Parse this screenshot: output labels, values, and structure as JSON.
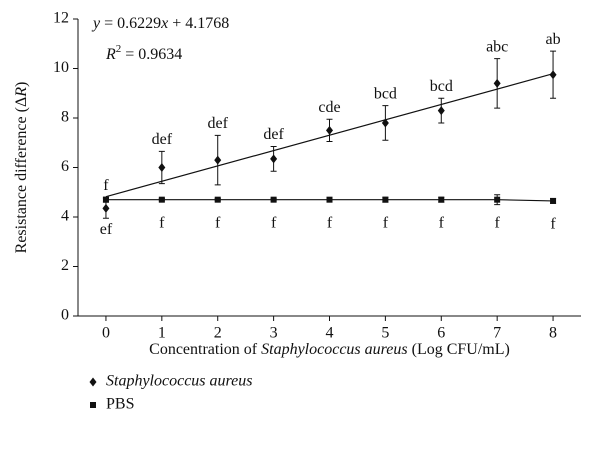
{
  "chart_data": {
    "type": "scatter",
    "xlabel": [
      "Concentration of ",
      "Staphylococcus aureus",
      " (Log CFU/mL)"
    ],
    "ylabel": [
      "Resistance difference (Δ",
      "R",
      ")"
    ],
    "equation": [
      "y",
      " = 0.6229",
      "x",
      " + 4.1768"
    ],
    "r_squared": [
      "R",
      "2",
      " = 0.9634"
    ],
    "x": [
      0,
      1,
      2,
      3,
      4,
      5,
      6,
      7,
      8
    ],
    "xlim": [
      -0.5,
      8.5
    ],
    "xticks": [
      0,
      1,
      2,
      3,
      4,
      5,
      6,
      7,
      8
    ],
    "ylim": [
      0,
      12
    ],
    "yticks": [
      0,
      2,
      4,
      6,
      8,
      10,
      12
    ],
    "trendline_series": 0,
    "series": [
      {
        "name": "Staphylococcus aureus",
        "marker": "diamond",
        "color": "#111",
        "values": [
          4.35,
          6.0,
          6.3,
          6.35,
          7.5,
          7.8,
          8.3,
          9.4,
          9.75
        ],
        "errors": [
          0.4,
          0.65,
          1.0,
          0.5,
          0.45,
          0.7,
          0.5,
          1.0,
          0.95
        ],
        "labels": [
          "ef",
          "def",
          "def",
          "def",
          "cde",
          "bcd",
          "bcd",
          "abc",
          "ab"
        ],
        "label_side": [
          "below",
          "above",
          "above",
          "above",
          "above",
          "above",
          "above",
          "above",
          "above"
        ]
      },
      {
        "name": "PBS",
        "marker": "square",
        "color": "#111",
        "values": [
          4.7,
          4.7,
          4.7,
          4.7,
          4.7,
          4.7,
          4.7,
          4.7,
          4.65
        ],
        "errors": [
          0.1,
          0.05,
          0.05,
          0.05,
          0.05,
          0.1,
          0.1,
          0.2,
          0.1
        ],
        "labels": [
          "f",
          "f",
          "f",
          "f",
          "f",
          "f",
          "f",
          "f",
          "f"
        ],
        "label_side": [
          "above",
          "below",
          "below",
          "below",
          "below",
          "below",
          "below",
          "below",
          "below"
        ]
      }
    ]
  }
}
